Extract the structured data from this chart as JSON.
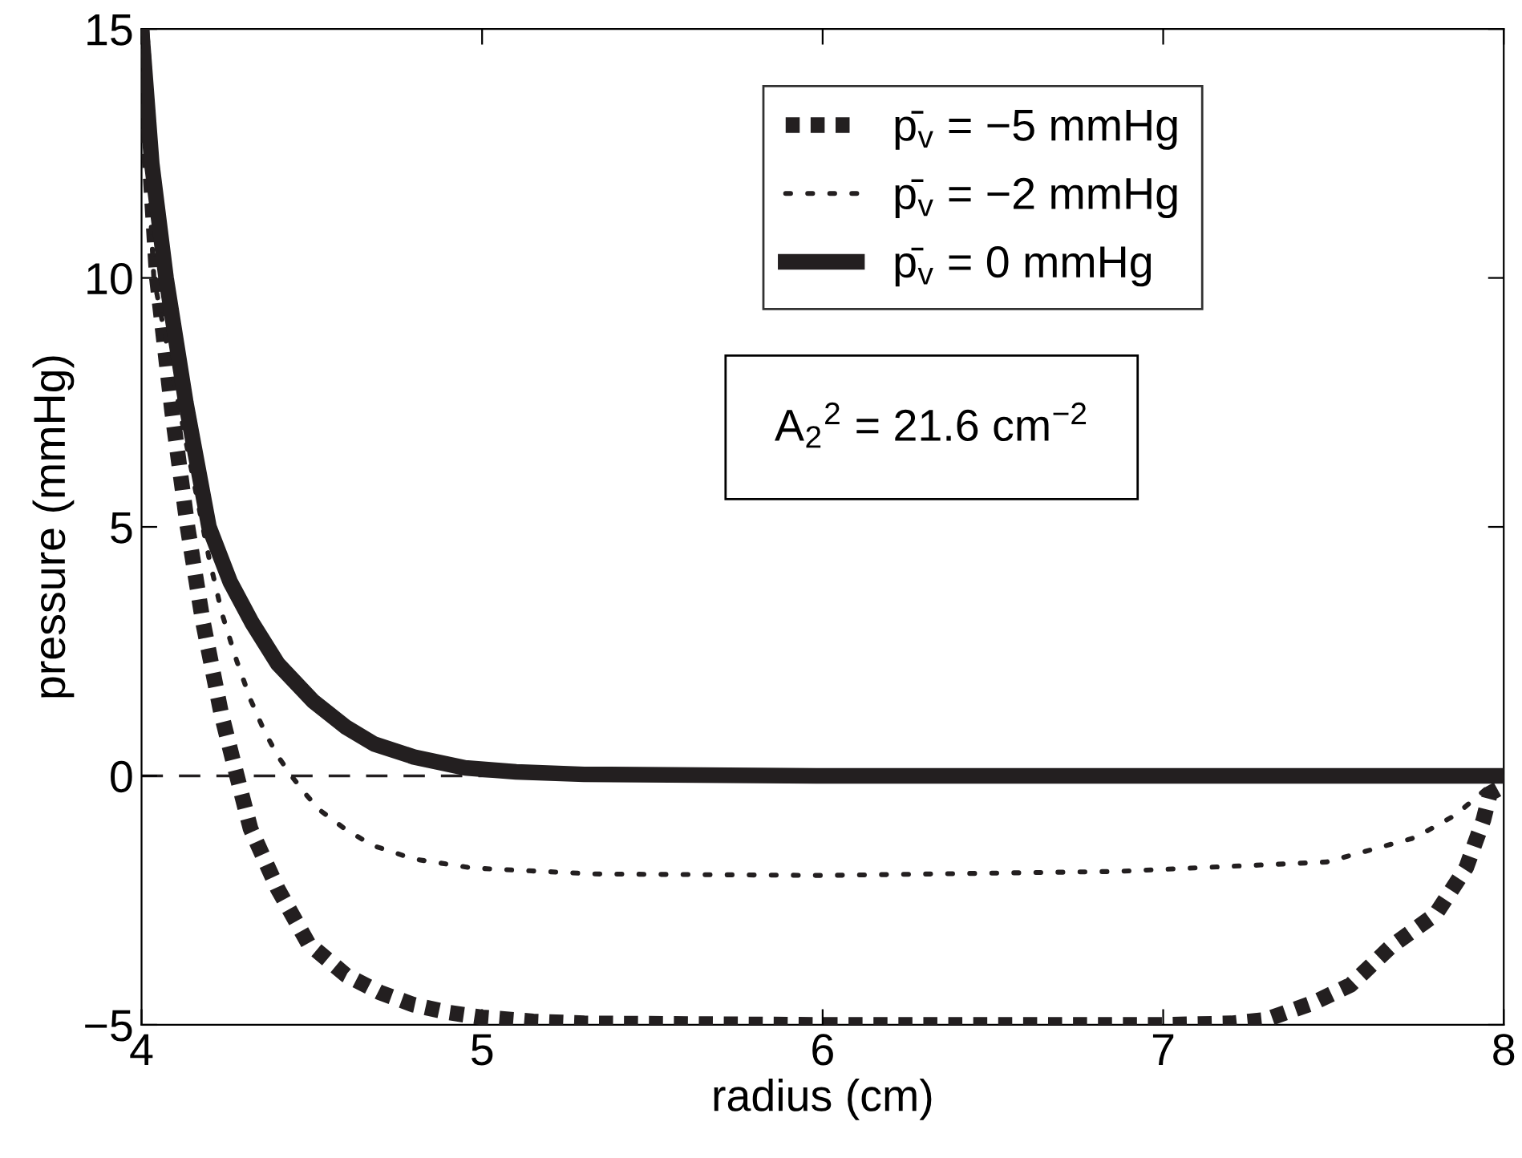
{
  "chart_data": {
    "type": "line",
    "xlabel": "radius (cm)",
    "ylabel": "pressure (mmHg)",
    "xlim": [
      4,
      8
    ],
    "ylim": [
      -5,
      15
    ],
    "xticks": [
      4,
      5,
      6,
      7,
      8
    ],
    "yticks": [
      -5,
      0,
      5,
      10,
      15
    ],
    "grid": false,
    "legend": "top right",
    "series": [
      {
        "name": "p̄$_{v}$ = −5 mmHg",
        "color": "#231f20",
        "line_style": "dashed",
        "x": [
          4,
          4.045,
          4.09,
          4.135,
          4.18,
          4.234,
          4.28,
          4.32,
          4.4,
          4.49,
          4.6,
          4.7,
          4.8,
          4.9,
          5.0,
          5.15,
          5.3,
          6.0,
          7.0,
          7.2,
          7.3,
          7.44,
          7.55,
          7.67,
          7.8,
          7.89,
          7.94,
          7.96,
          8
        ],
        "values": [
          15,
          10,
          7.3,
          5,
          3.1,
          1.25,
          0,
          -1.06,
          -2.27,
          -3.37,
          -4.0,
          -4.35,
          -4.6,
          -4.75,
          -4.85,
          -4.93,
          -4.97,
          -5,
          -5,
          -4.97,
          -4.9,
          -4.56,
          -4.2,
          -3.42,
          -2.78,
          -1.84,
          -0.89,
          -0.35,
          -0.2
        ]
      },
      {
        "name": "p̄$_{v}$ = −2 mmHg",
        "color": "#231f20",
        "line_style": "dotted",
        "x": [
          4,
          4.036,
          4.158,
          4.198,
          4.237,
          4.279,
          4.32,
          4.36,
          4.4,
          4.44,
          4.48,
          4.52,
          4.6,
          4.68,
          4.8,
          4.97,
          5.33,
          6.0,
          6.86,
          7.48,
          7.74,
          7.86,
          7.95,
          8
        ],
        "values": [
          15,
          10,
          5.75,
          4.38,
          3.24,
          2.32,
          1.53,
          0.91,
          0.4,
          0,
          -0.35,
          -0.67,
          -1.08,
          -1.4,
          -1.67,
          -1.85,
          -1.97,
          -2,
          -1.92,
          -1.73,
          -1.24,
          -0.78,
          -0.25,
          0
        ]
      },
      {
        "name": "p̄$_{v}$ = 0 mmHg",
        "color": "#231f20",
        "line_style": "solid",
        "x": [
          4,
          4.03,
          4.072,
          4.13,
          4.198,
          4.26,
          4.324,
          4.4,
          4.504,
          4.6,
          4.683,
          4.8,
          4.95,
          5.1,
          5.3,
          6,
          7,
          8
        ],
        "values": [
          15,
          12.3,
          10,
          7.5,
          5,
          3.9,
          3.08,
          2.25,
          1.5,
          0.98,
          0.64,
          0.38,
          0.16,
          0.08,
          0.03,
          0,
          0,
          0
        ]
      }
    ],
    "ref_lines": [
      {
        "axis": "y",
        "value": 0,
        "color": "#231f20",
        "line_style": "dashed"
      }
    ],
    "annotations": [
      "A$_{2}$$^{2}$ = 21.6 cm$^{−2}$"
    ]
  }
}
